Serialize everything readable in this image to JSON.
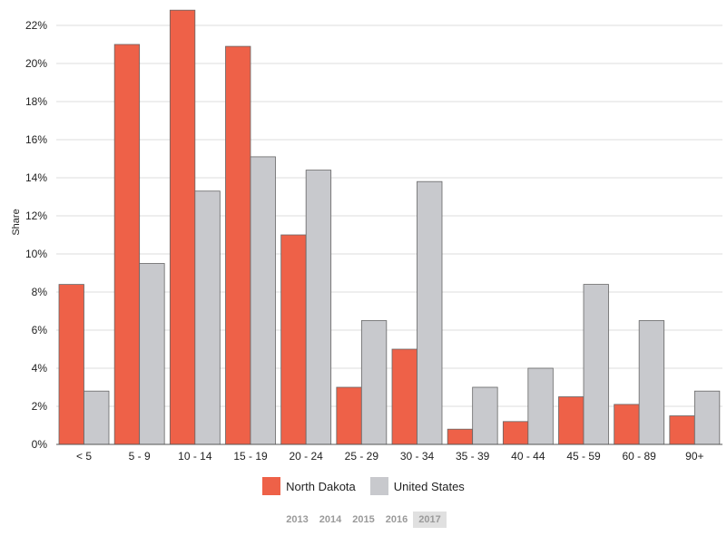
{
  "colors": {
    "north_dakota": "#ee6148",
    "united_states": "#c8c9cd",
    "grid": "#dddddd",
    "axis": "#555555"
  },
  "chart_data": {
    "type": "bar",
    "categories": [
      "< 5",
      "5 - 9",
      "10 - 14",
      "15 - 19",
      "20 - 24",
      "25 - 29",
      "30 - 34",
      "35 - 39",
      "40 - 44",
      "45 - 59",
      "60 - 89",
      "90+"
    ],
    "series": [
      {
        "name": "North Dakota",
        "values": [
          8.4,
          21.0,
          22.8,
          20.9,
          11.0,
          3.0,
          5.0,
          0.8,
          1.2,
          2.5,
          2.1,
          1.5
        ]
      },
      {
        "name": "United States",
        "values": [
          2.8,
          9.5,
          13.3,
          15.1,
          14.4,
          6.5,
          13.8,
          3.0,
          4.0,
          8.4,
          6.5,
          2.8
        ]
      }
    ],
    "ylabel": "Share",
    "ylim": [
      0,
      23
    ],
    "yticks": [
      0,
      2,
      4,
      6,
      8,
      10,
      12,
      14,
      16,
      18,
      20,
      22
    ],
    "ytick_labels": [
      "0%",
      "2%",
      "4%",
      "6%",
      "8%",
      "10%",
      "12%",
      "14%",
      "16%",
      "18%",
      "20%",
      "22%"
    ],
    "grid": true,
    "legend_position": "bottom"
  },
  "legend": {
    "items": [
      "North Dakota",
      "United States"
    ]
  },
  "years": {
    "items": [
      "2013",
      "2014",
      "2015",
      "2016",
      "2017"
    ],
    "selected": "2017"
  }
}
